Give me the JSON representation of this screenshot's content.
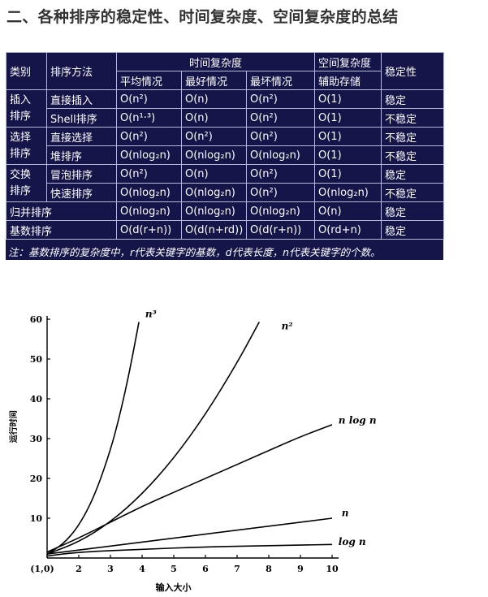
{
  "heading": "二、各种排序的稳定性、时间复杂度、空间复杂度的总结",
  "table": {
    "h_category": "类别",
    "h_method": "排序方法",
    "h_time": "时间复杂度",
    "h_space": "空间复杂度",
    "h_stability": "稳定性",
    "h_avg": "平均情况",
    "h_best": "最好情况",
    "h_worst": "最坏情况",
    "h_aux": "辅助存储",
    "rows": [
      {
        "category": "插入\n排序",
        "method": "直接插入",
        "avg": "O(n²)",
        "best": "O(n)",
        "worst": "O(n²)",
        "space": "O(1)",
        "stable": "稳定"
      },
      {
        "category": "",
        "method": "Shell排序",
        "avg": "O(n¹·³)",
        "best": "O(n)",
        "worst": "O(n²)",
        "space": "O(1)",
        "stable": "不稳定"
      },
      {
        "category": "选择\n排序",
        "method": "直接选择",
        "avg": "O(n²)",
        "best": "O(n²)",
        "worst": "O(n²)",
        "space": "O(1)",
        "stable": "不稳定"
      },
      {
        "category": "",
        "method": "堆排序",
        "avg": "O(nlog₂n)",
        "best": "O(nlog₂n)",
        "worst": "O(nlog₂n)",
        "space": "O(1)",
        "stable": "不稳定"
      },
      {
        "category": "交换\n排序",
        "method": "冒泡排序",
        "avg": "O(n²)",
        "best": "O(n)",
        "worst": "O(n²)",
        "space": "O(1)",
        "stable": "稳定"
      },
      {
        "category": "",
        "method": "快速排序",
        "avg": "O(nlog₂n)",
        "best": "O(nlog₂n)",
        "worst": "O(n²)",
        "space": "O(nlog₂n)",
        "stable": "不稳定"
      },
      {
        "category": "归并排序",
        "method": "",
        "avg": "O(nlog₂n)",
        "best": "O(nlog₂n)",
        "worst": "O(nlog₂n)",
        "space": "O(n)",
        "stable": "稳定"
      },
      {
        "category": "基数排序",
        "method": "",
        "avg": "O(d(r+n))",
        "best": "O(d(n+rd))",
        "worst": "O(d(r+n))",
        "space": "O(rd+n)",
        "stable": "稳定"
      }
    ],
    "note": "注：基数排序的复杂度中，r代表关键字的基数，d代表长度，n代表关键字的个数。"
  },
  "chart_data": {
    "type": "line",
    "xlabel": "输入大小",
    "ylabel": "运行时间",
    "xlim": [
      1,
      10
    ],
    "ylim": [
      0,
      60
    ],
    "x_ticks": [
      "(1,0)",
      "2",
      "3",
      "4",
      "5",
      "6",
      "7",
      "8",
      "9",
      "10"
    ],
    "y_ticks": [
      "10",
      "20",
      "30",
      "40",
      "50",
      "60"
    ],
    "grid": false,
    "series": [
      {
        "name": "n³",
        "x": [
          1,
          1.5,
          2,
          2.5,
          3,
          3.3,
          3.6,
          3.9
        ],
        "y": [
          1,
          3.4,
          8,
          15.6,
          27,
          36,
          46.7,
          59.3
        ]
      },
      {
        "name": "n²",
        "x": [
          1,
          2,
          3,
          4,
          5,
          6,
          7,
          7.7
        ],
        "y": [
          1,
          4,
          9,
          16,
          25,
          36,
          49,
          59.3
        ]
      },
      {
        "name": "n log n",
        "x": [
          1,
          2,
          3,
          4,
          5,
          6,
          7,
          8,
          9,
          10
        ],
        "y": [
          1.5,
          5,
          9,
          13,
          16.5,
          20,
          23.5,
          27,
          30.5,
          33.5
        ]
      },
      {
        "name": "n",
        "x": [
          1,
          10
        ],
        "y": [
          1,
          10
        ]
      },
      {
        "name": "log n",
        "x": [
          1,
          2,
          4,
          6,
          8,
          10
        ],
        "y": [
          0.5,
          1.5,
          2.2,
          2.8,
          3.1,
          3.4
        ]
      }
    ]
  }
}
